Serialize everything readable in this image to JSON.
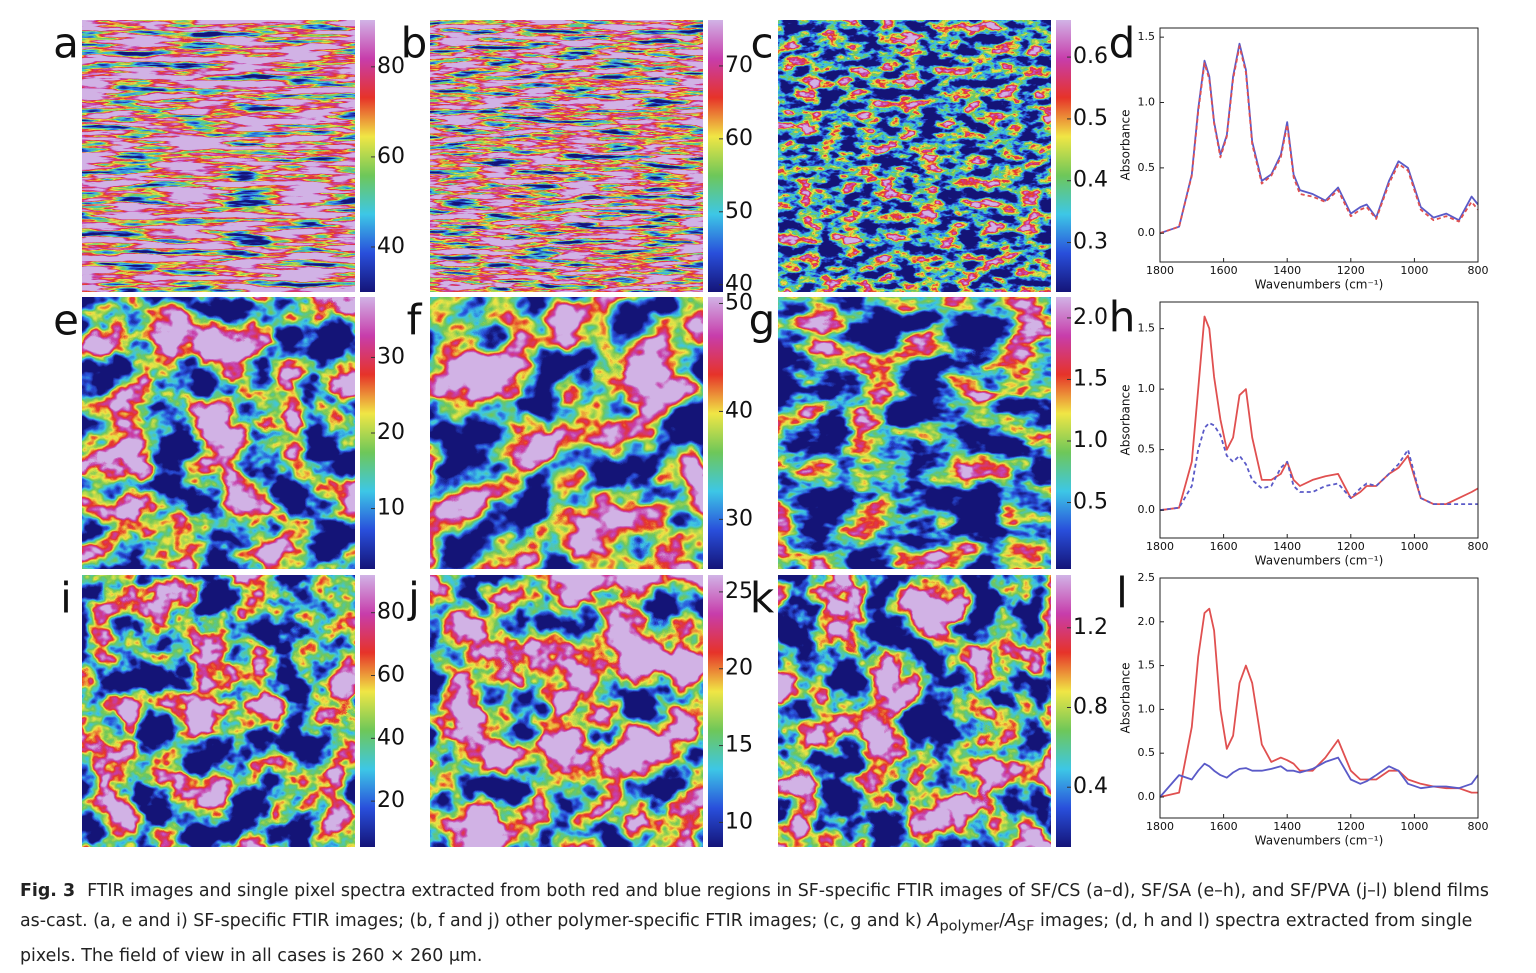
{
  "heatmaps": [
    {
      "label": "a",
      "clim": [
        30,
        90.4
      ],
      "ticks": [
        80,
        60,
        40
      ]
    },
    {
      "label": "b",
      "clim": [
        39,
        76.3
      ],
      "ticks": [
        70,
        60,
        50,
        40
      ]
    },
    {
      "label": "c",
      "clim": [
        0.22,
        0.66
      ],
      "ticks": [
        0.6,
        0.5,
        0.4,
        0.3
      ]
    },
    {
      "label": "e",
      "clim": [
        2,
        38
      ],
      "ticks": [
        30,
        20,
        10
      ]
    },
    {
      "label": "f",
      "clim": [
        25.4,
        50.6
      ],
      "ticks": [
        50,
        40,
        30
      ]
    },
    {
      "label": "g",
      "clim": [
        -0.04,
        2.17
      ],
      "ticks": [
        {
          "value": 2,
          "label": "2.0"
        },
        1.5,
        {
          "value": 1,
          "label": "1.0"
        },
        0.5
      ]
    },
    {
      "label": "i",
      "clim": [
        5.4,
        92
      ],
      "ticks": [
        80,
        60,
        40,
        20
      ]
    },
    {
      "label": "j",
      "clim": [
        8.4,
        26.1
      ],
      "ticks": [
        25,
        20,
        15,
        10
      ]
    },
    {
      "label": "k",
      "clim": [
        0.1,
        1.465
      ],
      "ticks": [
        1.2,
        0.8,
        0.4
      ]
    }
  ],
  "chart_data": [
    {
      "type": "line",
      "label": "d",
      "xlabel": "Wavenumbers (cm⁻¹)",
      "ylabel": "Absorbance",
      "x": [
        1800,
        1740,
        1700,
        1680,
        1660,
        1645,
        1630,
        1610,
        1590,
        1570,
        1550,
        1530,
        1510,
        1480,
        1450,
        1420,
        1400,
        1380,
        1360,
        1320,
        1280,
        1240,
        1200,
        1170,
        1150,
        1120,
        1080,
        1050,
        1020,
        980,
        940,
        900,
        860,
        820,
        800
      ],
      "xlim": [
        1800,
        800
      ],
      "xticks": [
        1800,
        1600,
        1400,
        1200,
        1000,
        800
      ],
      "ylim": [
        -0.22,
        1.57
      ],
      "yticks": [
        {
          "value": 0,
          "label": "0.0"
        },
        0.5,
        {
          "value": 1,
          "label": "1.0"
        },
        1.5
      ],
      "series": [
        {
          "color": "#5a5ac8",
          "dashed": false,
          "values": [
            0.0,
            0.05,
            0.45,
            0.95,
            1.32,
            1.2,
            0.85,
            0.6,
            0.75,
            1.2,
            1.45,
            1.25,
            0.7,
            0.4,
            0.45,
            0.6,
            0.85,
            0.45,
            0.33,
            0.3,
            0.25,
            0.35,
            0.15,
            0.2,
            0.22,
            0.12,
            0.4,
            0.55,
            0.5,
            0.2,
            0.12,
            0.15,
            0.1,
            0.28,
            0.22
          ]
        },
        {
          "color": "#e05050",
          "dashed": true,
          "values": [
            0.0,
            0.05,
            0.44,
            0.93,
            1.3,
            1.18,
            0.84,
            0.58,
            0.74,
            1.18,
            1.43,
            1.23,
            0.68,
            0.38,
            0.44,
            0.58,
            0.83,
            0.43,
            0.3,
            0.28,
            0.24,
            0.33,
            0.13,
            0.18,
            0.2,
            0.11,
            0.38,
            0.53,
            0.48,
            0.18,
            0.1,
            0.13,
            0.09,
            0.24,
            0.18
          ]
        }
      ]
    },
    {
      "type": "line",
      "label": "h",
      "xlabel": "Wavenumbers (cm⁻¹)",
      "ylabel": "Absorbance",
      "x": [
        1800,
        1740,
        1700,
        1680,
        1660,
        1645,
        1630,
        1610,
        1590,
        1570,
        1550,
        1530,
        1510,
        1480,
        1450,
        1420,
        1400,
        1380,
        1360,
        1320,
        1280,
        1240,
        1200,
        1170,
        1150,
        1120,
        1080,
        1050,
        1020,
        980,
        940,
        900,
        860,
        820,
        800
      ],
      "xlim": [
        1800,
        800
      ],
      "xticks": [
        1800,
        1600,
        1400,
        1200,
        1000,
        800
      ],
      "ylim": [
        -0.23,
        1.72
      ],
      "yticks": [
        {
          "value": 0,
          "label": "0.0"
        },
        0.5,
        {
          "value": 1,
          "label": "1.0"
        },
        1.5
      ],
      "series": [
        {
          "color": "#e05050",
          "dashed": false,
          "values": [
            0.0,
            0.02,
            0.4,
            1.0,
            1.6,
            1.5,
            1.1,
            0.75,
            0.5,
            0.6,
            0.95,
            1.0,
            0.6,
            0.25,
            0.25,
            0.3,
            0.4,
            0.25,
            0.2,
            0.25,
            0.28,
            0.3,
            0.1,
            0.15,
            0.2,
            0.2,
            0.3,
            0.35,
            0.45,
            0.1,
            0.05,
            0.05,
            0.1,
            0.15,
            0.18
          ]
        },
        {
          "color": "#5a5ac8",
          "dashed": true,
          "values": [
            0.0,
            0.02,
            0.2,
            0.5,
            0.68,
            0.72,
            0.7,
            0.62,
            0.45,
            0.4,
            0.45,
            0.38,
            0.25,
            0.18,
            0.2,
            0.35,
            0.4,
            0.2,
            0.15,
            0.15,
            0.2,
            0.22,
            0.1,
            0.18,
            0.22,
            0.2,
            0.3,
            0.38,
            0.5,
            0.1,
            0.05,
            0.05,
            0.05,
            0.05,
            0.05
          ]
        }
      ]
    },
    {
      "type": "line",
      "label": "l",
      "xlabel": "Wavenumbers (cm⁻¹)",
      "ylabel": "Absorbance",
      "x": [
        1800,
        1740,
        1700,
        1680,
        1660,
        1645,
        1630,
        1610,
        1590,
        1570,
        1550,
        1530,
        1510,
        1480,
        1450,
        1420,
        1400,
        1380,
        1360,
        1320,
        1280,
        1240,
        1200,
        1170,
        1150,
        1120,
        1080,
        1050,
        1020,
        980,
        940,
        900,
        860,
        820,
        800
      ],
      "xlim": [
        1800,
        800
      ],
      "xticks": [
        1800,
        1600,
        1400,
        1200,
        1000,
        800
      ],
      "ylim": [
        -0.24,
        2.5
      ],
      "yticks": [
        {
          "value": 0,
          "label": "0.0"
        },
        0.5,
        {
          "value": 1,
          "label": "1.0"
        },
        1.5,
        {
          "value": 2,
          "label": "2.0"
        },
        2.5
      ],
      "series": [
        {
          "color": "#e05050",
          "dashed": false,
          "values": [
            0.0,
            0.05,
            0.8,
            1.6,
            2.1,
            2.15,
            1.9,
            1.0,
            0.55,
            0.7,
            1.3,
            1.5,
            1.3,
            0.6,
            0.4,
            0.45,
            0.42,
            0.38,
            0.3,
            0.3,
            0.45,
            0.65,
            0.3,
            0.2,
            0.2,
            0.2,
            0.3,
            0.3,
            0.2,
            0.15,
            0.12,
            0.1,
            0.1,
            0.05,
            0.05
          ]
        },
        {
          "color": "#5a5ac8",
          "dashed": false,
          "values": [
            0.0,
            0.25,
            0.2,
            0.3,
            0.38,
            0.35,
            0.3,
            0.25,
            0.22,
            0.28,
            0.32,
            0.33,
            0.3,
            0.3,
            0.32,
            0.35,
            0.3,
            0.3,
            0.28,
            0.32,
            0.4,
            0.45,
            0.2,
            0.15,
            0.18,
            0.25,
            0.35,
            0.3,
            0.15,
            0.1,
            0.12,
            0.12,
            0.1,
            0.15,
            0.25
          ]
        }
      ]
    }
  ],
  "caption": {
    "label": "Fig. 3",
    "parts": [
      "FTIR images and single pixel spectra extracted from both red and blue regions in SF-specific FTIR images of SF/CS (a–d), SF/SA (e–h), and SF/PVA (j–l) blend films as-cast. (a, e and i) SF-specific FTIR images; (b, f and j) other polymer-specific FTIR images; (c, g and k) ",
      "A",
      "polymer",
      "/",
      "A",
      "SF",
      " images; (d, h and l) spectra extracted from single pixels. The field of view in all cases is 260 × 260 μm."
    ]
  }
}
